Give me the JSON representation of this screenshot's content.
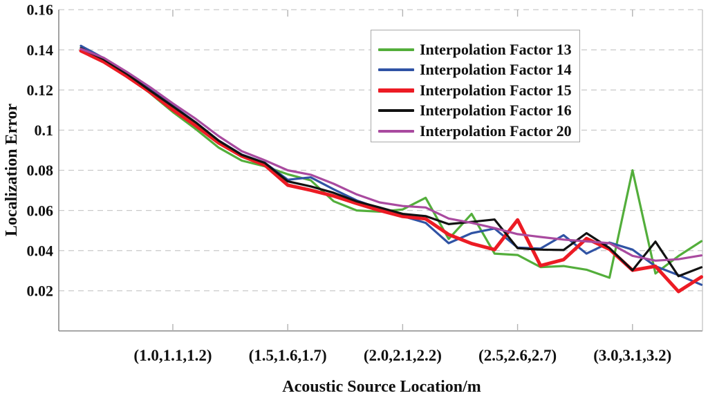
{
  "chart_data": {
    "type": "line",
    "title": "",
    "xlabel": "Acoustic Source Location/m",
    "ylabel": "Localization Error",
    "ylim": [
      0,
      0.16
    ],
    "y_ticks": [
      0.02,
      0.04,
      0.06,
      0.08,
      0.1,
      0.12,
      0.14,
      0.16
    ],
    "y_tick_labels": [
      "0.02",
      "0.04",
      "0.06",
      "0.08",
      "0.1",
      "0.12",
      "0.14",
      "0.16"
    ],
    "grid": "horizontal-dashed",
    "legend_position": "upper-right-inside",
    "x": [
      0.7,
      0.8,
      0.9,
      1.0,
      1.1,
      1.2,
      1.3,
      1.4,
      1.5,
      1.6,
      1.7,
      1.8,
      1.9,
      2.0,
      2.1,
      2.2,
      2.3,
      2.4,
      2.5,
      2.6,
      2.7,
      2.8,
      2.9,
      3.0,
      3.1,
      3.2,
      3.3,
      3.4
    ],
    "x_tick_indices": [
      4,
      9,
      14,
      19,
      24
    ],
    "x_tick_labels": [
      "(1.0,1.1,1.2)",
      "(1.5,1.6,1.7)",
      "(2.0,2.1,2.2)",
      "(2.5,2.6,2.7)",
      "(3.0,3.1,3.2)"
    ],
    "series": [
      {
        "name": "Interpolation Factor 13",
        "color": "#53ae3b",
        "width": 3.2,
        "values": [
          0.141,
          0.1348,
          0.1272,
          0.1185,
          0.109,
          0.1005,
          0.0913,
          0.0848,
          0.082,
          0.078,
          0.075,
          0.0646,
          0.06,
          0.0594,
          0.0605,
          0.0663,
          0.0458,
          0.0583,
          0.0385,
          0.0378,
          0.0318,
          0.0323,
          0.0305,
          0.0265,
          0.08,
          0.0286,
          0.0373,
          0.0447
        ]
      },
      {
        "name": "Interpolation Factor 14",
        "color": "#3053a4",
        "width": 3.2,
        "values": [
          0.142,
          0.1358,
          0.1285,
          0.1205,
          0.1122,
          0.1038,
          0.0948,
          0.0878,
          0.0838,
          0.0753,
          0.0765,
          0.0705,
          0.065,
          0.061,
          0.0572,
          0.0538,
          0.0437,
          0.0487,
          0.051,
          0.0415,
          0.041,
          0.0477,
          0.0385,
          0.044,
          0.0405,
          0.0322,
          0.0278,
          0.023
        ]
      },
      {
        "name": "Interpolation Factor 15",
        "color": "#ec1b24",
        "width": 5,
        "values": [
          0.1395,
          0.134,
          0.1268,
          0.119,
          0.1101,
          0.1022,
          0.0936,
          0.0871,
          0.0826,
          0.0726,
          0.0701,
          0.0672,
          0.0635,
          0.06,
          0.057,
          0.0558,
          0.048,
          0.0435,
          0.0405,
          0.0553,
          0.0325,
          0.0355,
          0.046,
          0.0407,
          0.0302,
          0.0322,
          0.0196,
          0.0269
        ]
      },
      {
        "name": "Interpolation Factor 16",
        "color": "#121212",
        "width": 3.2,
        "values": [
          0.1408,
          0.1352,
          0.128,
          0.1198,
          0.1118,
          0.1038,
          0.0947,
          0.0877,
          0.0837,
          0.0745,
          0.072,
          0.0688,
          0.0645,
          0.0615,
          0.0583,
          0.0572,
          0.0532,
          0.0543,
          0.0555,
          0.0412,
          0.0405,
          0.0403,
          0.0487,
          0.0413,
          0.0302,
          0.0445,
          0.0273,
          0.0317
        ]
      },
      {
        "name": "Interpolation Factor 20",
        "color": "#a94a9f",
        "width": 3.2,
        "values": [
          0.1405,
          0.136,
          0.129,
          0.1215,
          0.1133,
          0.1056,
          0.097,
          0.0895,
          0.085,
          0.08,
          0.0778,
          0.0733,
          0.068,
          0.064,
          0.0622,
          0.0615,
          0.056,
          0.0538,
          0.0512,
          0.0482,
          0.0468,
          0.0455,
          0.0446,
          0.0437,
          0.0374,
          0.035,
          0.0357,
          0.0376
        ]
      }
    ],
    "style": {
      "axis_color": "#8a8a8a",
      "right_border_color": "#c2c2c2",
      "grid_color": "#c9c9c9",
      "tick_color": "#b3b3b3",
      "background": "#ffffff"
    }
  }
}
